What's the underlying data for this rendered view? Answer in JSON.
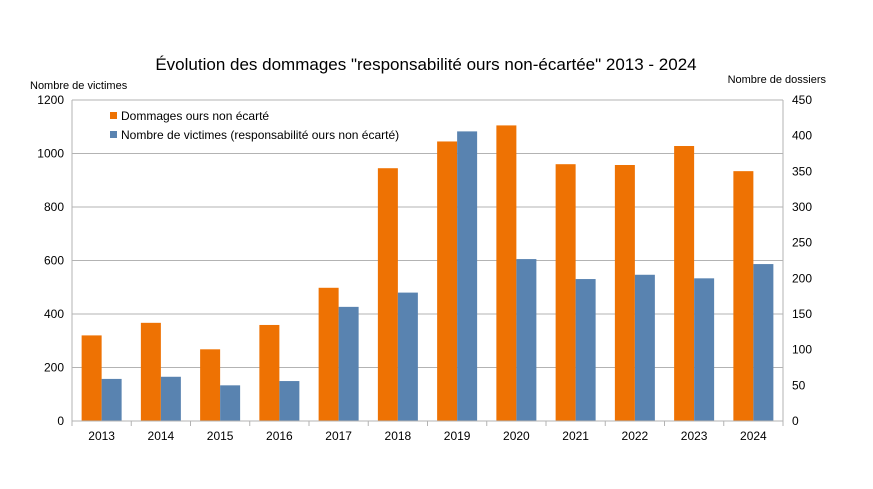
{
  "chart_data": {
    "type": "bar",
    "title": "Évolution des dommages \"responsabilité ours non-écartée\" 2013 - 2024",
    "ylabel_left": "Nombre de victimes",
    "ylabel_right": "Nombre de dossiers",
    "categories": [
      "2013",
      "2014",
      "2015",
      "2016",
      "2017",
      "2018",
      "2019",
      "2020",
      "2021",
      "2022",
      "2023",
      "2024"
    ],
    "ylim_left": [
      0,
      1200
    ],
    "yticks_left": [
      0,
      200,
      400,
      600,
      800,
      1000,
      1200
    ],
    "ylim_right": [
      0,
      450
    ],
    "yticks_right": [
      0,
      50,
      100,
      150,
      200,
      250,
      300,
      350,
      400,
      450
    ],
    "grid": true,
    "legend_position": "top-left",
    "series": [
      {
        "name": "Dommages ours non écarté",
        "axis": "left",
        "color": "#ee7203",
        "values": [
          320,
          367,
          268,
          359,
          498,
          945,
          1045,
          1105,
          960,
          957,
          1028,
          934
        ]
      },
      {
        "name": "Nombre de victimes (responsabilité ours non écarté)",
        "axis": "right",
        "color": "#5983b0",
        "values": [
          59,
          62,
          50,
          56,
          160,
          180,
          406,
          227,
          199,
          205,
          200,
          220
        ]
      }
    ]
  }
}
